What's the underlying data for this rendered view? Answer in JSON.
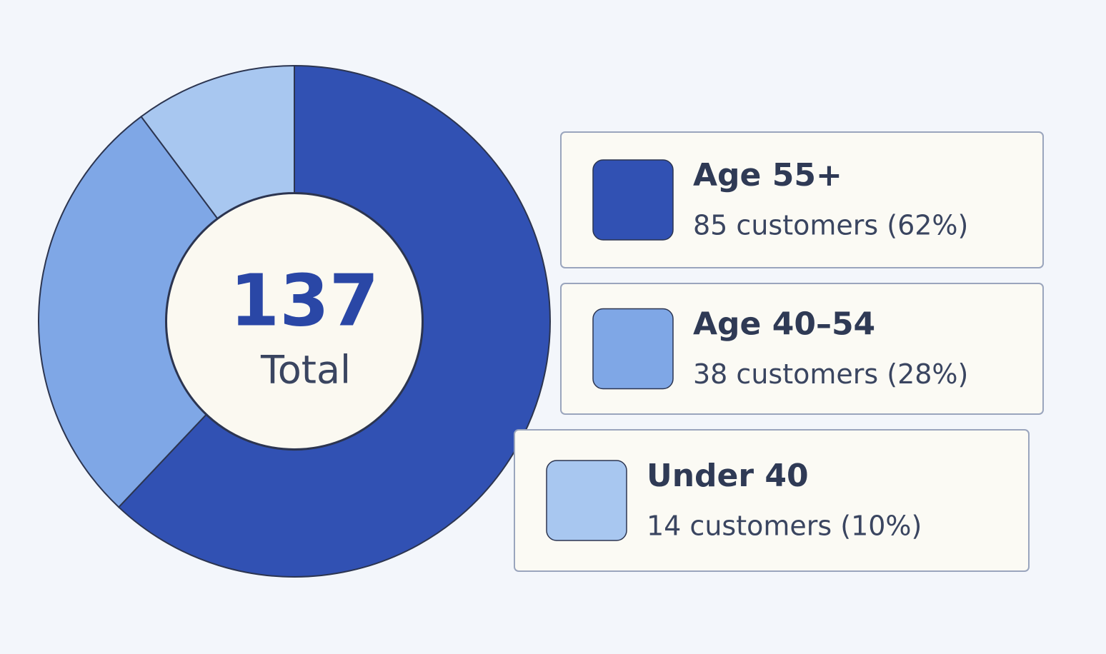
{
  "chart_data": {
    "type": "donut",
    "center_value": 137,
    "center_label": "Total",
    "categories": [
      "Age 55+",
      "Age 40–54",
      "Under 40"
    ],
    "values": [
      85,
      38,
      14
    ],
    "value_labels": [
      "85 customers (62%)",
      "38 customers (28%)",
      "14 customers (10%)"
    ],
    "colors": [
      "#3151b3",
      "#7fa7e6",
      "#a8c7f0"
    ]
  }
}
